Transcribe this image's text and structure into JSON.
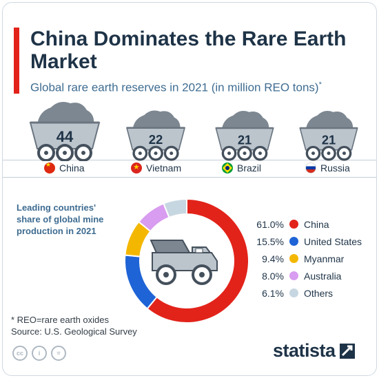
{
  "title": "China Dominates the Rare Earth Market",
  "subtitle": "Global rare earth reserves in 2021 (in million REO tons)",
  "subtitle_mark": "*",
  "chart_data": [
    {
      "type": "bar",
      "subtitle": "Global rare earth reserves in 2021 (in million REO tons)",
      "categories": [
        "China",
        "Vietnam",
        "Brazil",
        "Russia"
      ],
      "values": [
        44,
        22,
        21,
        21
      ],
      "flag_icons": [
        "china-flag-icon",
        "vietnam-flag-icon",
        "brazil-flag-icon",
        "russia-flag-icon"
      ]
    },
    {
      "type": "pie",
      "title": "Leading countries' share of global mine production in 2021",
      "categories": [
        "China",
        "United States",
        "Myanmar",
        "Australia",
        "Others"
      ],
      "values": [
        61.0,
        15.5,
        9.4,
        8.0,
        6.1
      ],
      "value_labels": [
        "61.0%",
        "15.5%",
        "9.4%",
        "8.0%",
        "6.1%"
      ],
      "colors": [
        "#e2231a",
        "#1f64d6",
        "#f4b700",
        "#d89cf0",
        "#c7d7e1"
      ]
    }
  ],
  "footnote": "* REO=rare earth oxides",
  "source": "Source: U.S. Geological Survey",
  "license_icons": [
    "cc-icon",
    "by-icon",
    "nd-icon"
  ],
  "license_glyphs": [
    "cc",
    "i",
    "="
  ],
  "brand": "statista",
  "colors": {
    "accent": "#e2231a",
    "title": "#1e3347",
    "subtitle": "#3e6c91",
    "ore": "#7d8791",
    "cart": "#bcc4cc"
  }
}
